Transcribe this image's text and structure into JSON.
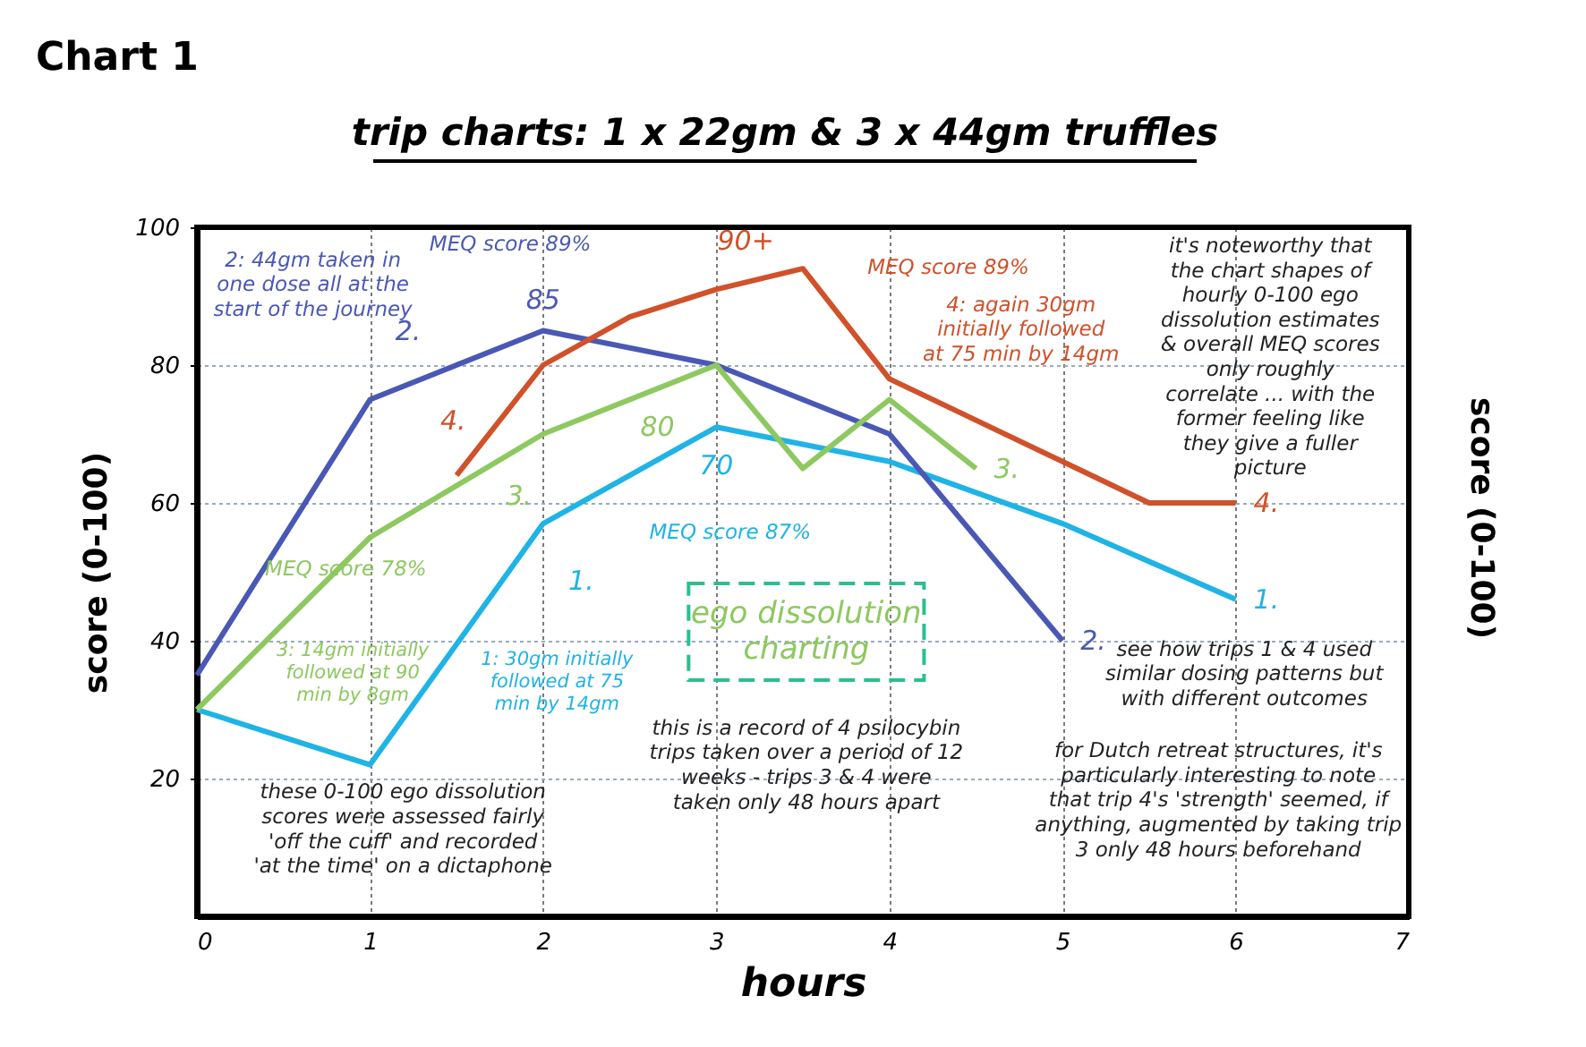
{
  "chart_data": {
    "type": "line",
    "title": "Chart 1",
    "subtitle": "trip charts: 1 x 22gm & 3 x 44gm truffles",
    "xlabel": "hours",
    "ylabel": "score (0-100)",
    "y2label": "score (0-100)",
    "xlim": [
      0,
      7
    ],
    "ylim": [
      0,
      100
    ],
    "xticks": [
      0,
      1,
      2,
      3,
      4,
      5,
      6,
      7
    ],
    "yticks": [
      20,
      40,
      60,
      80,
      100
    ],
    "grid": true,
    "legend": false,
    "marker": "none",
    "line_style": "solid",
    "series": [
      {
        "name": "1.",
        "color": "#1fb3e6",
        "x": [
          0,
          1,
          2,
          3,
          4,
          5,
          6
        ],
        "values": [
          30,
          22,
          57,
          71,
          66,
          57,
          46
        ]
      },
      {
        "name": "2.",
        "color": "#4a58b5",
        "x": [
          0,
          1,
          2,
          3,
          4,
          5
        ],
        "values": [
          35,
          75,
          85,
          80,
          70,
          40
        ]
      },
      {
        "name": "3.",
        "color": "#8dc860",
        "x": [
          0,
          1,
          2,
          3,
          3.5,
          4,
          4.5
        ],
        "values": [
          30,
          55,
          70,
          80,
          65,
          75,
          65
        ]
      },
      {
        "name": "4.",
        "color": "#d0512a",
        "x": [
          1.5,
          2,
          2.5,
          3,
          3.5,
          4,
          5,
          5.5,
          6
        ],
        "values": [
          64,
          80,
          87,
          91,
          94,
          78,
          66,
          60,
          60
        ]
      }
    ],
    "annotations": [
      "2: 44gm taken in\none dose all at the\nstart of the journey",
      "MEQ score 89%",
      "MEQ score 87%",
      "MEQ score 78%",
      "MEQ score 89%",
      "4: again 30gm\ninitially followed\nat 75 min by 14gm",
      "it's noteworthy that\nthe chart shapes of\nhourly 0-100 ego\ndissolution estimates\n& overall MEQ scores\nonly roughly\ncorrelate ... with the\nformer feeling like\nthey give a fuller\npicture",
      "3: 14gm initially\nfollowed at 90\nmin by 8gm",
      "1: 30gm initially\nfollowed at 75\nmin by 14gm",
      "these 0-100 ego dissolution\nscores were assessed fairly\n'off the cuff' and recorded\n'at the time' on a dictaphone",
      "this is a record of 4 psilocybin\ntrips taken over a period of 12\nweeks - trips 3 & 4 were\ntaken only 48 hours apart",
      "see how trips 1 & 4 used\nsimilar dosing patterns but\nwith different outcomes",
      "for Dutch retreat structures, it's\nparticularly interesting to note\nthat trip 4's 'strength' seemed, if\nanything, augmented by taking trip\n3 only 48 hours beforehand",
      "ego dissolution\ncharting",
      "85",
      "70",
      "80",
      "90+",
      "2.",
      "4.",
      "3.",
      "1."
    ]
  }
}
